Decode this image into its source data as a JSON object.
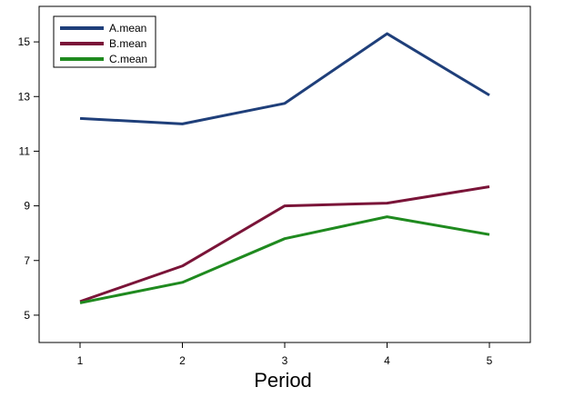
{
  "chart_data": {
    "type": "line",
    "title": "",
    "xlabel": "Period",
    "ylabel": "",
    "x": [
      1,
      2,
      3,
      4,
      5
    ],
    "x_ticks": [
      "1",
      "2",
      "3",
      "4",
      "5"
    ],
    "xlim": [
      0.6,
      5.4
    ],
    "ylim": [
      4.0,
      16.3
    ],
    "y_ticks": [
      "5",
      "7",
      "9",
      "11",
      "13",
      "15"
    ],
    "grid": false,
    "legend_position": "top-left",
    "series": [
      {
        "name": "A.mean",
        "color": "#1f3f7a",
        "values": [
          12.2,
          12.0,
          12.75,
          15.3,
          13.05
        ]
      },
      {
        "name": "B.mean",
        "color": "#7a1438",
        "values": [
          5.5,
          6.8,
          9.0,
          9.1,
          9.7
        ]
      },
      {
        "name": "C.mean",
        "color": "#1f8a1f",
        "values": [
          5.45,
          6.2,
          7.8,
          8.6,
          7.95
        ]
      }
    ]
  }
}
